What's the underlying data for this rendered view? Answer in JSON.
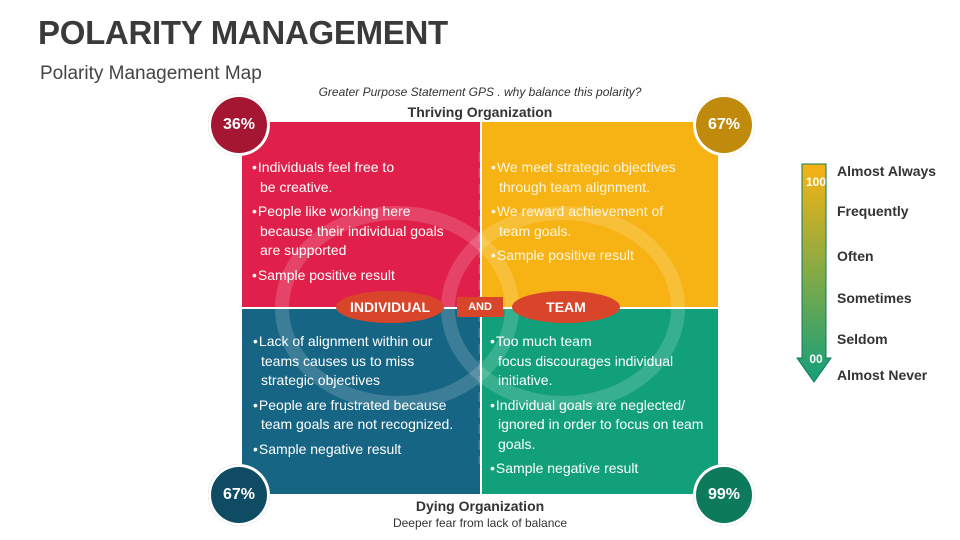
{
  "header": {
    "title": "POLARITY MANAGEMENT",
    "subtitle": "Polarity Management Map"
  },
  "map": {
    "purpose_statement": "Greater Purpose Statement GPS . why balance this polarity?",
    "top_label": "Thriving Organization",
    "bottom_label": "Dying Organization",
    "bottom_sublabel": "Deeper fear from lack of balance",
    "left_pole": "INDIVIDUAL",
    "right_pole": "TEAM",
    "connector": "AND",
    "quadrants": {
      "top_left": {
        "color": "#e0204a",
        "percent": "36%",
        "points": [
          "Individuals feel free to\nbe creative.",
          "People like working here\nbecause their individual goals\nare supported",
          "Sample positive result"
        ]
      },
      "top_right": {
        "color": "#f7b313",
        "percent": "67%",
        "points": [
          "We meet strategic objectives\nthrough team alignment.",
          "We reward achievement of\nteam goals.",
          "Sample positive result"
        ]
      },
      "bottom_left": {
        "color": "#176584",
        "percent": "67%",
        "points": [
          "Lack of alignment within our\nteams causes us to miss\nstrategic objectives",
          "People are frustrated because\nteam goals  are not recognized.",
          "Sample negative result"
        ]
      },
      "bottom_right": {
        "color": "#12a07a",
        "percent": "99%",
        "points": [
          "Too much team\nfocus  discourages individual\ninitiative.",
          "Individual goals are neglected/\nignored in order to focus on team\ngoals.",
          "Sample negative result"
        ]
      }
    }
  },
  "scale": {
    "top_value": "100",
    "bottom_value": "00",
    "gradient": [
      "#f7b313",
      "#12a07a"
    ],
    "levels": [
      "Almost Always",
      "Frequently",
      "Often",
      "Sometimes",
      "Seldom",
      "Almost Never"
    ]
  }
}
